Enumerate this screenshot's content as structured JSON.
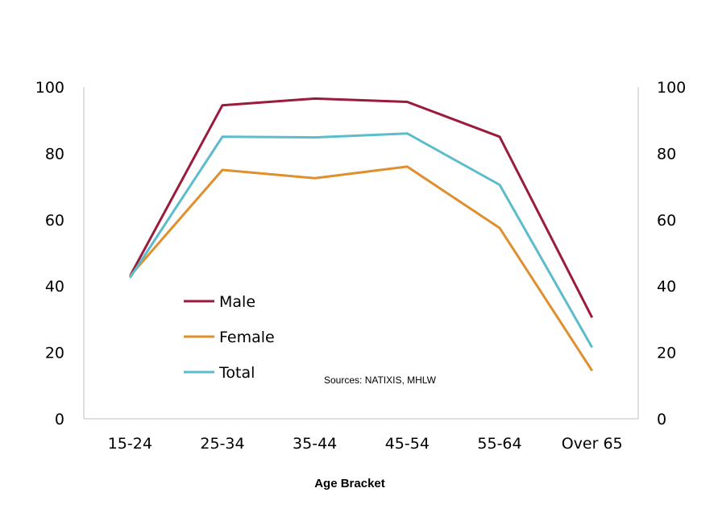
{
  "chart_data": {
    "type": "line",
    "xlabel": "Age Bracket",
    "ylabel": "",
    "categories": [
      "15-24",
      "25-34",
      "35-44",
      "45-54",
      "55-64",
      "Over 65"
    ],
    "ylim": [
      0,
      100
    ],
    "y_ticks": [
      "0",
      "20",
      "40",
      "60",
      "80",
      "100"
    ],
    "secondary_y_ticks": [
      "0",
      "20",
      "40",
      "60",
      "80",
      "100"
    ],
    "grid": false,
    "legend_position": "inside-lower-left",
    "annotation": "Sources: NATIXIS, MHLW",
    "series": [
      {
        "name": "Male",
        "color": "#9b1b3c",
        "values": [
          43,
          94.5,
          96.5,
          95.5,
          85,
          30.5
        ]
      },
      {
        "name": "Female",
        "color": "#df8f2e",
        "values": [
          43,
          75,
          72.5,
          76,
          57.5,
          14.5
        ]
      },
      {
        "name": "Total",
        "color": "#5bbdcc",
        "values": [
          42.5,
          85,
          84.8,
          86,
          70.5,
          21.5
        ]
      }
    ]
  }
}
